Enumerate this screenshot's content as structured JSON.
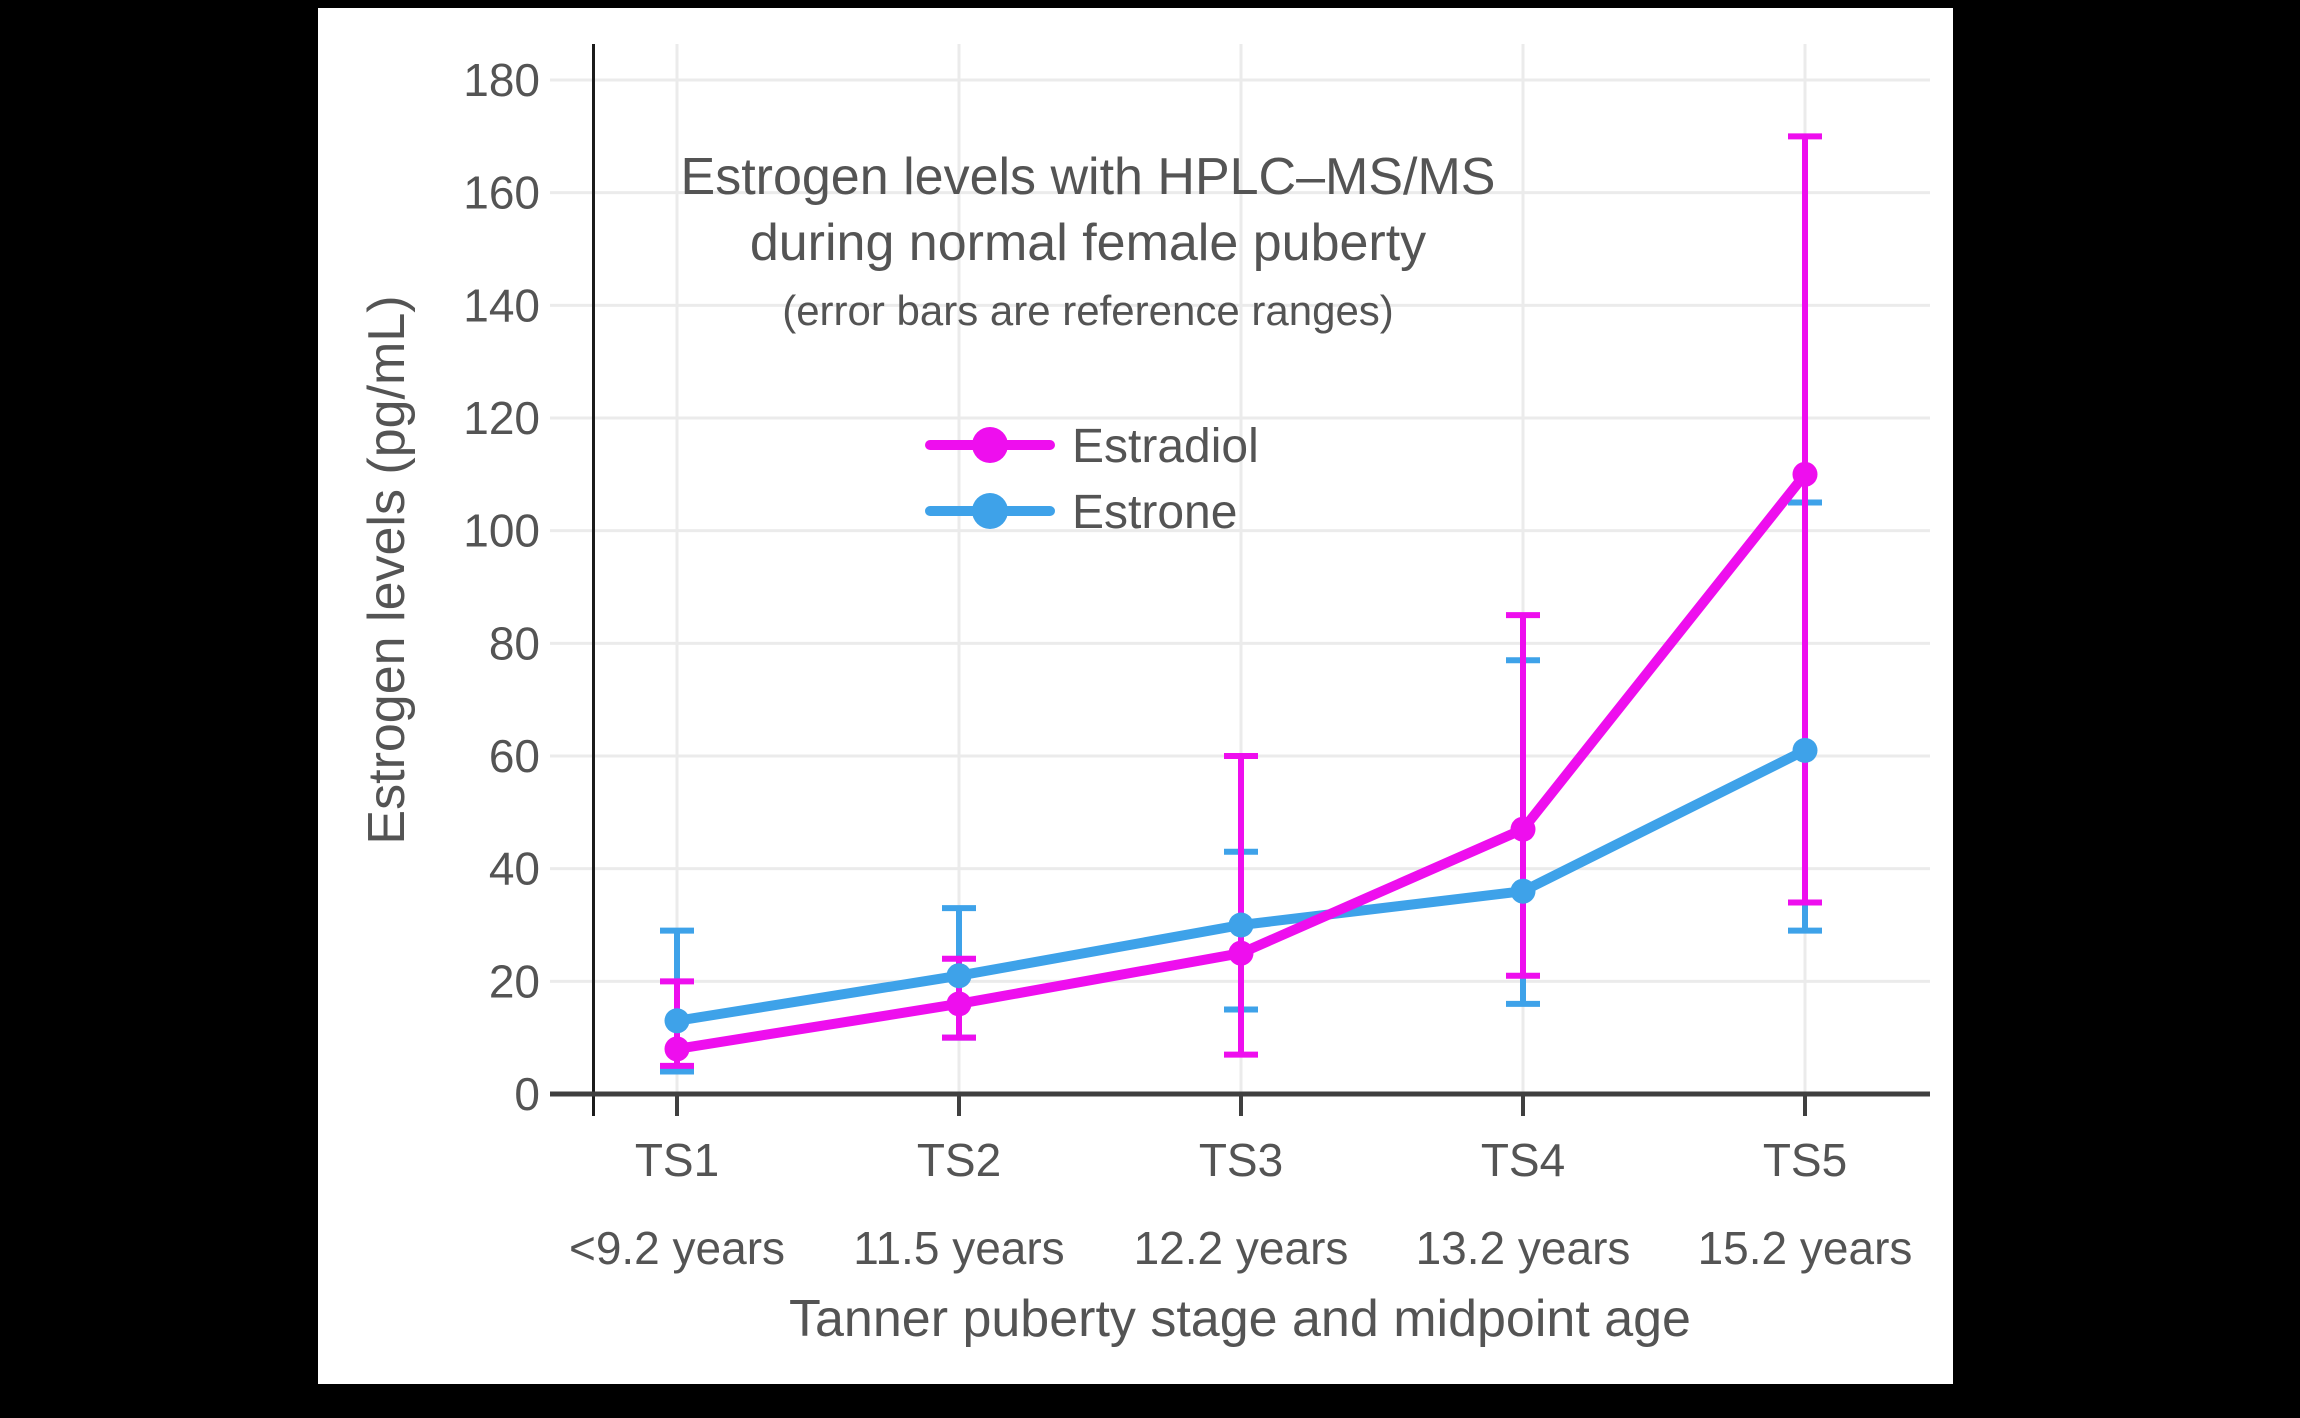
{
  "page": {
    "background": "#000000",
    "canvas_background": "#ffffff",
    "text_color": "#545454",
    "gridline_color": "#ebebeb",
    "x_axis_color": "#3f3f3f",
    "y_axis_color": "#1b1b1b"
  },
  "chart_data": {
    "type": "line",
    "title_lines": [
      "Estrogen levels with HPLC–MS/MS",
      "during normal female puberty"
    ],
    "subtitle": "(error bars are reference ranges)",
    "xlabel": "Tanner puberty stage and midpoint age",
    "ylabel": "Estrogen levels (pg/mL)",
    "ylim": [
      0,
      180
    ],
    "yticks": [
      0,
      20,
      40,
      60,
      80,
      100,
      120,
      140,
      160,
      180
    ],
    "grid": true,
    "legend_position": "inside top-center, below subtitle",
    "categories": [
      {
        "stage": "TS1",
        "age": "<9.2 years"
      },
      {
        "stage": "TS2",
        "age": "11.5 years"
      },
      {
        "stage": "TS3",
        "age": "12.2 years"
      },
      {
        "stage": "TS4",
        "age": "13.2 years"
      },
      {
        "stage": "TS5",
        "age": "15.2 years"
      }
    ],
    "series": [
      {
        "name": "Estrone",
        "color": "#3ea2e9",
        "values": [
          13,
          21,
          30,
          36,
          61
        ],
        "error_low": [
          4,
          10,
          15,
          16,
          29
        ],
        "error_high": [
          29,
          33,
          43,
          77,
          105
        ]
      },
      {
        "name": "Estradiol",
        "color": "#ee0eee",
        "values": [
          8,
          16,
          25,
          47,
          110
        ],
        "error_low": [
          5,
          10,
          7,
          21,
          34
        ],
        "error_high": [
          20,
          24,
          60,
          85,
          170
        ]
      }
    ],
    "legend_order": [
      "Estradiol",
      "Estrone"
    ]
  }
}
